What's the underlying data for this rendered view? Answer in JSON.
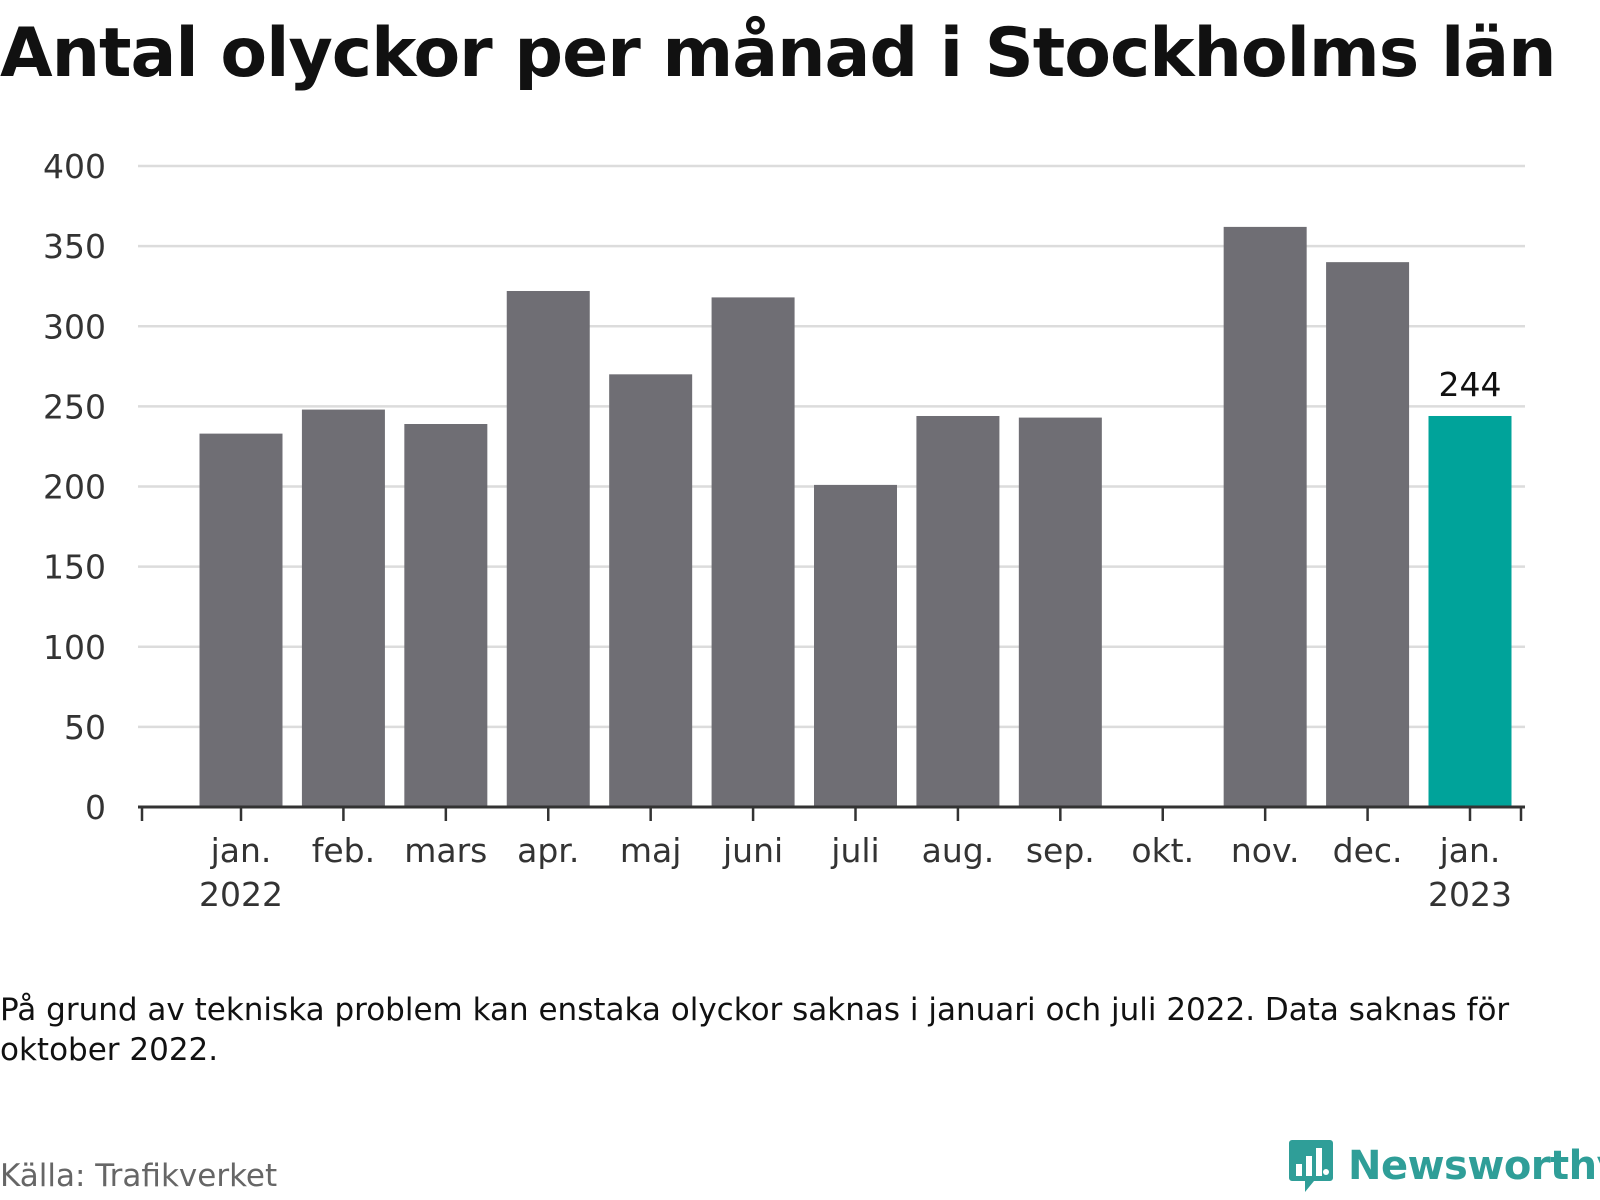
{
  "title": "Antal olyckor per månad i Stockholms län",
  "note": "På grund av tekniska problem kan enstaka olyckor saknas i januari och juli 2022. Data saknas för oktober 2022.",
  "source": "Källa: Trafikverket",
  "brand": {
    "name": "Newsworthy",
    "icon": "speech-bubble-bar-chart-icon"
  },
  "colors": {
    "bar": "#6f6e74",
    "highlight": "#00a39a",
    "grid": "#dcdcdc",
    "axis": "#333333",
    "brand": "#2f9e98"
  },
  "chart_data": {
    "type": "bar",
    "categories": [
      [
        "jan.",
        "2022"
      ],
      [
        "feb."
      ],
      [
        "mars"
      ],
      [
        "apr."
      ],
      [
        "maj"
      ],
      [
        "juni"
      ],
      [
        "juli"
      ],
      [
        "aug."
      ],
      [
        "sep."
      ],
      [
        "okt."
      ],
      [
        "nov."
      ],
      [
        "dec."
      ],
      [
        "jan.",
        "2023"
      ]
    ],
    "values": [
      233,
      248,
      239,
      322,
      270,
      318,
      201,
      244,
      243,
      null,
      362,
      340,
      244
    ],
    "highlight_index": 12,
    "data_labels": [
      {
        "index": 12,
        "text": "244"
      }
    ],
    "yticks": [
      0,
      50,
      100,
      150,
      200,
      250,
      300,
      350,
      400
    ],
    "ylim": [
      0,
      400
    ],
    "grid": true,
    "xlabel": "",
    "ylabel": ""
  }
}
